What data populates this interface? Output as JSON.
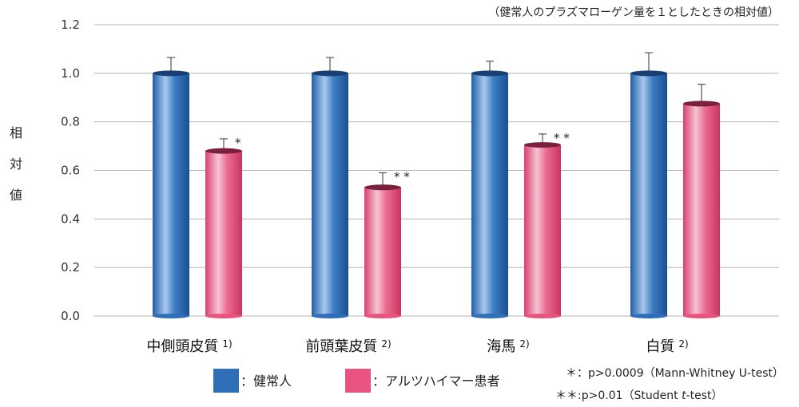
{
  "chart_data": {
    "type": "bar",
    "note": "（健常人のプラズマローゲン量を１としたときの相対値）",
    "ylabel": "相対値",
    "ylim": [
      0,
      1.2
    ],
    "yticks": [
      "0.0",
      "0.2",
      "0.4",
      "0.6",
      "0.8",
      "1.0",
      "1.2"
    ],
    "categories": [
      {
        "label": "中側頭皮質",
        "ref": "1)"
      },
      {
        "label": "前頭葉皮質",
        "ref": "2)"
      },
      {
        "label": "海馬",
        "ref": "2)"
      },
      {
        "label": "白質",
        "ref": "2)"
      }
    ],
    "series": [
      {
        "name": "健常人",
        "legend_label": "：健常人",
        "color": "#2e6fb7",
        "values": [
          1.0,
          1.0,
          1.0,
          1.0
        ],
        "errors": [
          0.065,
          0.065,
          0.05,
          0.085
        ],
        "significance": [
          "",
          "",
          "",
          ""
        ]
      },
      {
        "name": "アルツハイマー患者",
        "legend_label": "：アルツハイマー患者",
        "color": "#e8547f",
        "values": [
          0.68,
          0.53,
          0.705,
          0.875
        ],
        "errors": [
          0.05,
          0.06,
          0.045,
          0.08
        ],
        "significance": [
          "*",
          "**",
          "**",
          ""
        ]
      }
    ],
    "grid": true,
    "legend": "bottom",
    "significance_notes": [
      {
        "marker": "＊",
        "text": "：p>0.0009（Mann-Whitney U-test）"
      },
      {
        "marker": "＊＊",
        "text": ":p>0.01（Student ",
        "italic": "t",
        "suffix": "-test）"
      }
    ]
  }
}
